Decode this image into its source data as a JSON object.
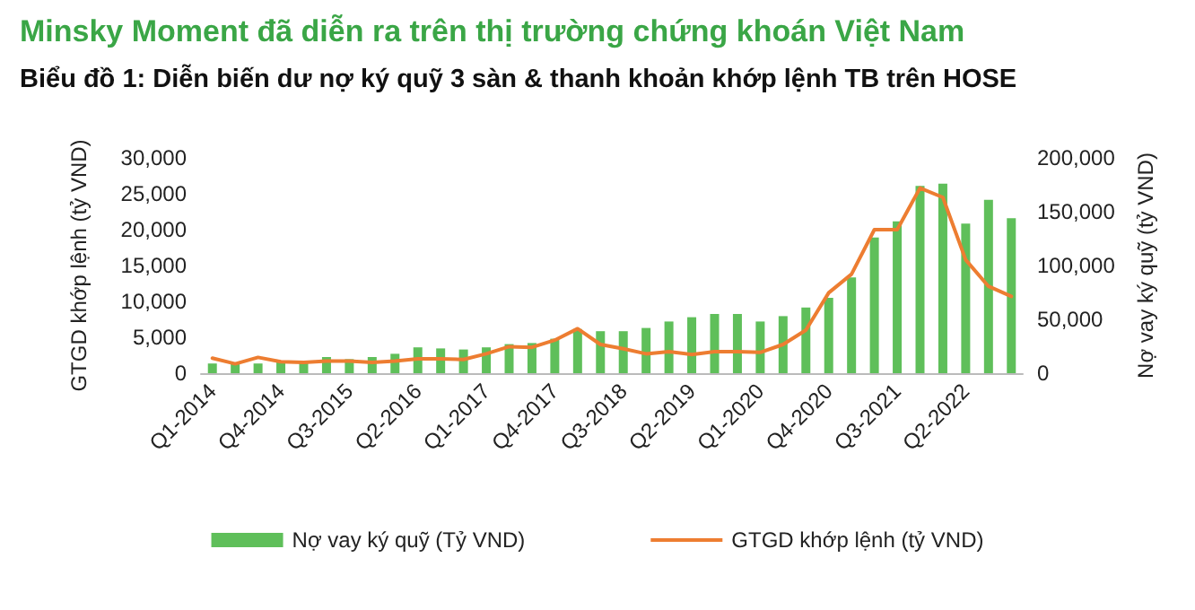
{
  "chart_data": {
    "type": "bar",
    "title": "Minsky Moment đã diễn ra trên thị trường chứng khoán Việt Nam",
    "subtitle": "Biểu đồ 1: Diễn biến dư nợ ký quỹ 3 sàn & thanh khoản khớp lệnh TB trên HOSE",
    "ylabel": "GTGD khớp lệnh (tỷ VND)",
    "y2label": "Nợ vay ký quỹ (tỷ VND)",
    "categories": [
      "Q1-2014",
      null,
      null,
      "Q4-2014",
      null,
      null,
      "Q3-2015",
      null,
      null,
      "Q2-2016",
      null,
      null,
      "Q1-2017",
      null,
      null,
      "Q4-2017",
      null,
      null,
      "Q3-2018",
      null,
      null,
      "Q2-2019",
      null,
      null,
      "Q1-2020",
      null,
      null,
      "Q4-2020",
      null,
      null,
      "Q3-2021",
      null,
      null,
      "Q2-2022",
      null,
      null
    ],
    "series": [
      {
        "name": "Nợ vay ký quỹ (Tỷ VND)",
        "axis": "y2",
        "color": "#5fbf5a",
        "values": [
          9000,
          9000,
          9000,
          11000,
          11000,
          15000,
          13000,
          15000,
          18000,
          24000,
          23000,
          22000,
          24000,
          27000,
          28000,
          32000,
          41000,
          39000,
          39000,
          42000,
          48000,
          52000,
          55000,
          55000,
          48000,
          53000,
          61000,
          70000,
          89000,
          126000,
          141000,
          174000,
          176000,
          139000,
          161000,
          144000
        ]
      },
      {
        "name": "GTGD khớp lệnh (tỷ VND)",
        "type": "line",
        "color": "#ed7d31",
        "values": [
          2100,
          1300,
          2200,
          1600,
          1500,
          1700,
          1700,
          1500,
          1700,
          2000,
          2000,
          1900,
          2700,
          3700,
          3600,
          4600,
          6200,
          4000,
          3400,
          2700,
          3000,
          2600,
          3000,
          3000,
          2900,
          4000,
          6000,
          11200,
          13800,
          20000,
          20000,
          25800,
          24500,
          15800,
          12100,
          10700
        ]
      }
    ],
    "ylim": [
      0,
      30000
    ],
    "yticks": [
      0,
      {
        "value": 5000,
        "label": "5,000"
      },
      {
        "value": 10000,
        "label": "10,000"
      },
      {
        "value": 15000,
        "label": "15,000"
      },
      {
        "value": 20000,
        "label": "20,000"
      },
      {
        "value": 25000,
        "label": "25,000"
      },
      {
        "value": 30000,
        "label": "30,000"
      }
    ],
    "y2lim": [
      0,
      200000
    ],
    "y2ticks": [
      0,
      {
        "value": 50000,
        "label": "50,000"
      },
      {
        "value": 100000,
        "label": "100,000"
      },
      {
        "value": 150000,
        "label": "150,000"
      },
      {
        "value": 200000,
        "label": "200,000"
      }
    ],
    "legend": "bottom",
    "grid": false,
    "marker": "none",
    "line_style": "solid"
  }
}
